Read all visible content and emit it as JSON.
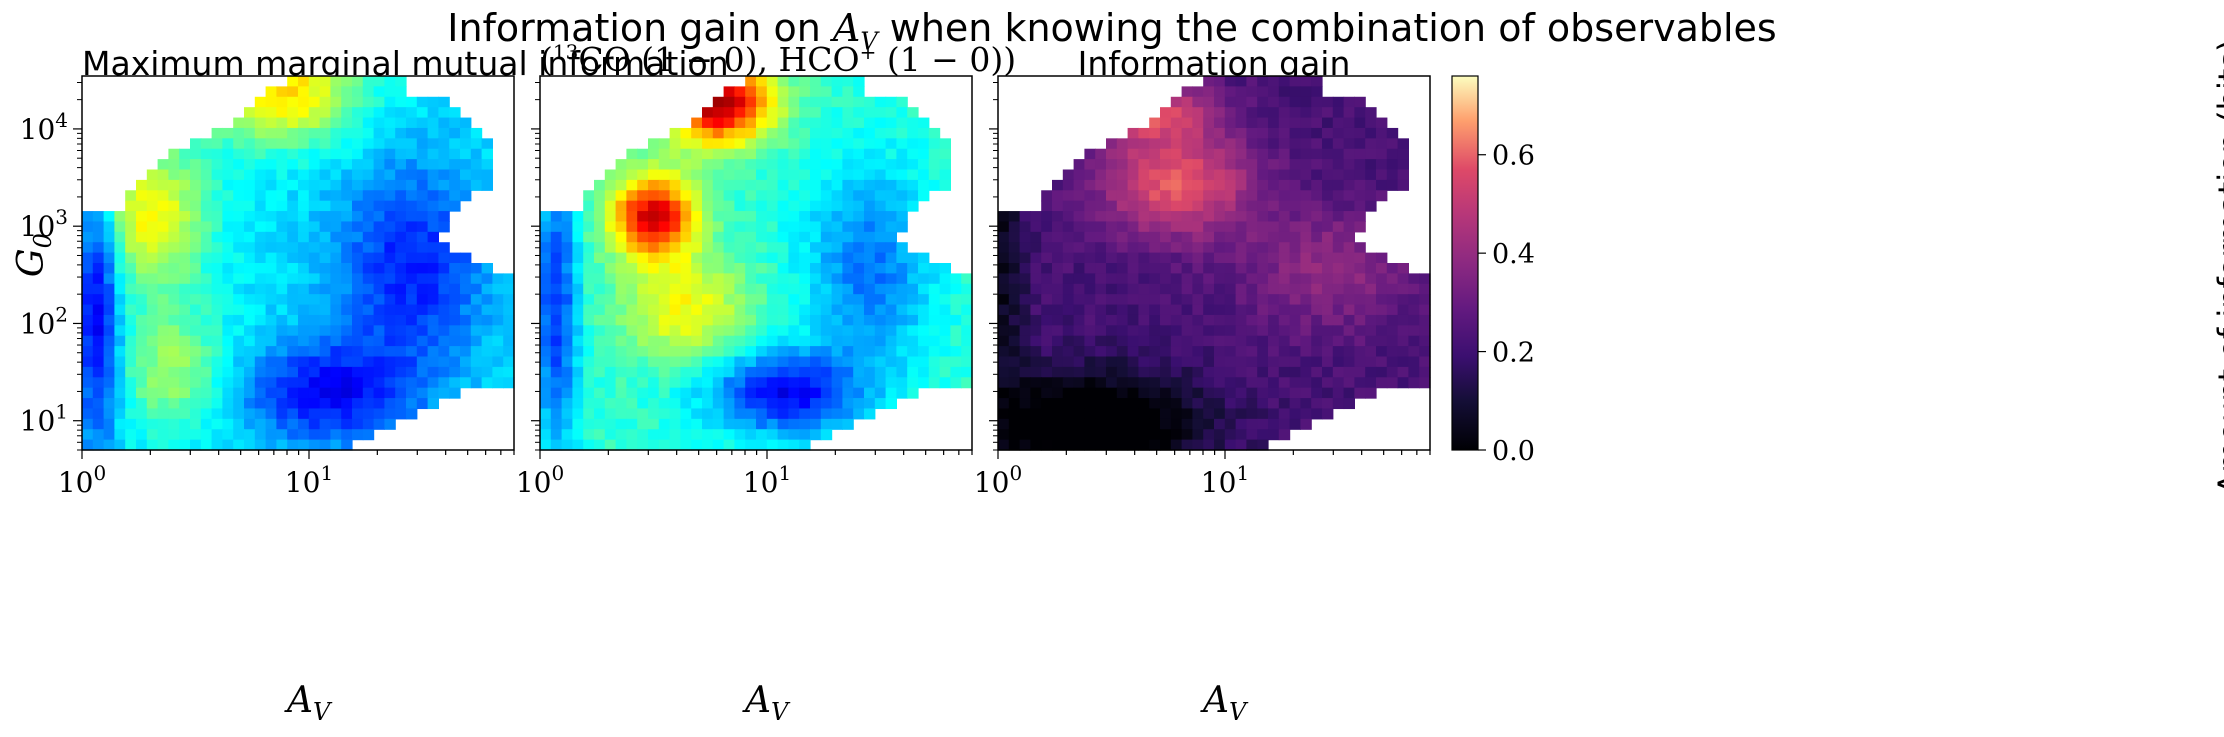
{
  "figure": {
    "suptitle_prefix": "Information gain on ",
    "suptitle_math": "A",
    "suptitle_sub": "V",
    "suptitle_suffix": " when knowing the combination of observables",
    "colorbar_label": "Amount of information (bits)"
  },
  "chart_data": [
    {
      "type": "heatmap",
      "title": "Maximum marginal mutual information",
      "xlabel": "A_V",
      "ylabel": "G_0",
      "xscale": "log",
      "yscale": "log",
      "xlim": [
        1,
        80
      ],
      "ylim": [
        5,
        35000
      ],
      "xticks": [
        "10^0",
        "10^1"
      ],
      "yticks": [
        "10^1",
        "10^2",
        "10^3",
        "10^4"
      ],
      "colormap": "jet",
      "description_hotspots": [
        {
          "A_V": 4,
          "G_0": 1000,
          "level": "yellow-green"
        },
        {
          "A_V": 12,
          "G_0": 20000,
          "level": "yellow"
        },
        {
          "A_V": 15,
          "G_0": 20,
          "level": "blue (low)"
        }
      ]
    },
    {
      "type": "heatmap",
      "title": "(13CO (1 − 0), HCO+ (1 − 0))",
      "xlabel": "A_V",
      "xscale": "log",
      "yscale": "log",
      "xlim": [
        1,
        80
      ],
      "ylim": [
        5,
        35000
      ],
      "xticks": [
        "10^0",
        "10^1"
      ],
      "colormap": "jet",
      "description_hotspots": [
        {
          "A_V": 4.5,
          "G_0": 1200,
          "level": "red (high)"
        },
        {
          "A_V": 10,
          "G_0": 25000,
          "level": "dark red (max)"
        },
        {
          "A_V": 15,
          "G_0": 20,
          "level": "blue (low)"
        }
      ]
    },
    {
      "type": "heatmap",
      "title": "Information gain",
      "xlabel": "A_V",
      "xscale": "log",
      "yscale": "log",
      "xlim": [
        1,
        80
      ],
      "ylim": [
        5,
        35000
      ],
      "xticks": [
        "10^0",
        "10^1"
      ],
      "colormap": "magma",
      "colorbar": {
        "min": 0.0,
        "max": 0.76,
        "ticks": [
          "0.0",
          "0.2",
          "0.4",
          "0.6"
        ]
      },
      "description_hotspots": [
        {
          "A_V": 8,
          "G_0": 3000,
          "value": 0.6
        },
        {
          "A_V": 10,
          "G_0": 12000,
          "value": 0.55
        },
        {
          "A_V": 2,
          "G_0": 10,
          "value": 0.0
        }
      ]
    }
  ],
  "panels": [
    {
      "title": "Maximum marginal mutual information"
    },
    {
      "title_open": "(",
      "title_sup13": "13",
      "title_co": "CO (1 − 0), HCO",
      "title_supplus": "+",
      "title_rest": " (1 − 0))"
    },
    {
      "title": "Information gain"
    }
  ],
  "ticks": {
    "x_major": [
      {
        "base": "10",
        "exp": "0"
      },
      {
        "base": "10",
        "exp": "1"
      }
    ],
    "y_major": [
      {
        "base": "10",
        "exp": "1"
      },
      {
        "base": "10",
        "exp": "2"
      },
      {
        "base": "10",
        "exp": "3"
      },
      {
        "base": "10",
        "exp": "4"
      }
    ],
    "cbar": [
      "0.0",
      "0.2",
      "0.4",
      "0.6"
    ]
  },
  "labels": {
    "x_axis_base": "A",
    "x_axis_sub": "V",
    "y_axis_base": "G",
    "y_axis_sub": "0"
  }
}
